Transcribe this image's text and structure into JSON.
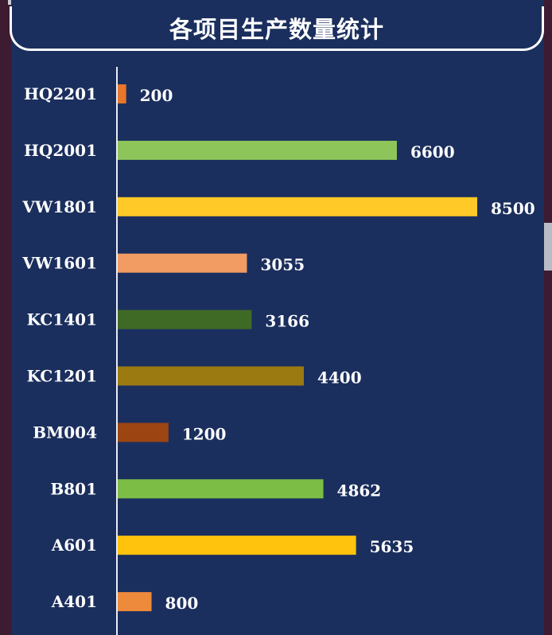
{
  "chart_data": {
    "type": "bar",
    "orientation": "horizontal",
    "title": "各项目生产数量统计",
    "categories": [
      "HQ2201",
      "HQ2001",
      "VW1801",
      "VW1601",
      "KC1401",
      "KC1201",
      "BM004",
      "B801",
      "A601",
      "A401"
    ],
    "values": [
      200,
      6600,
      8500,
      3055,
      3166,
      4400,
      1200,
      4862,
      5635,
      800
    ],
    "value_labels": [
      "200",
      "6600",
      "8500",
      "3055",
      "3166",
      "4400",
      "1200",
      "4862",
      "5635",
      "800"
    ],
    "colors": [
      "#e8762b",
      "#8dc55a",
      "#ffc928",
      "#f29b63",
      "#3f6a25",
      "#9b7a12",
      "#9c4513",
      "#7bbd45",
      "#ffc30d",
      "#ee8a3c"
    ],
    "xlim": [
      0,
      8500
    ],
    "grid": false,
    "legend": "none"
  },
  "colors": {
    "background": "#1b2f5e",
    "text": "#ffffff",
    "axis": "#ffffff"
  }
}
